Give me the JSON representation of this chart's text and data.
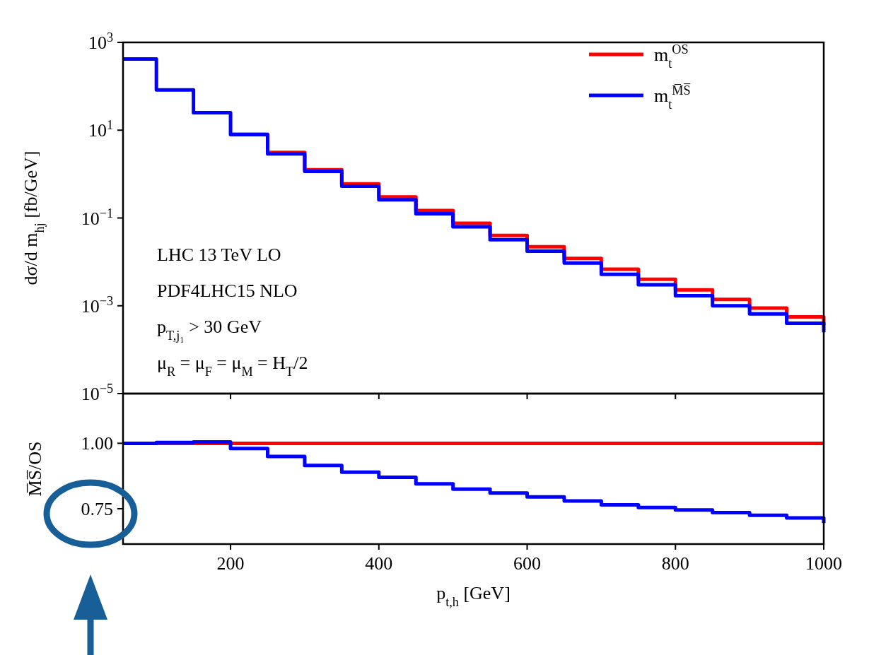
{
  "chart_data": [
    {
      "type": "step",
      "log": "y",
      "ylabel": "dσ/d m$_{hj}$ [fb/GeV]",
      "xlim": [
        55,
        1000
      ],
      "xticks": [
        200,
        400,
        600,
        800,
        1000
      ],
      "ylim": [
        1e-05,
        1000
      ],
      "yticks": [
        {
          "value": 1e-05,
          "label": "10$^{−5}$"
        },
        {
          "value": 0.001,
          "label": "10$^{−3}$"
        },
        {
          "value": 0.1,
          "label": "10$^{−1}$"
        },
        {
          "value": 10,
          "label": "10$^{1}$"
        },
        {
          "value": 1000,
          "label": "10$^{3}$"
        }
      ],
      "tick_labels": "y",
      "legend": "top right",
      "line_style": "solid",
      "annotations": [
        "LHC 13 TeV LO",
        "PDF4LHC15 NLO",
        "p$_{T,j₁}$ > 30 GeV",
        "μ$_{R}$ = μ$_{F}$ = μ$_{M}$ = H$_{T}$/2"
      ],
      "x": [
        55,
        100,
        150,
        200,
        250,
        300,
        350,
        400,
        450,
        500,
        550,
        600,
        650,
        700,
        750,
        800,
        850,
        900,
        950,
        1000
      ],
      "series": [
        {
          "name": "m$_{t}$$^{OS}$",
          "color": "#ff0000",
          "values": [
            null,
            null,
            null,
            8.1,
            3.1,
            1.26,
            0.6,
            0.3,
            0.148,
            0.076,
            0.04,
            0.022,
            0.012,
            0.0068,
            0.004,
            0.0023,
            0.0014,
            0.00089,
            0.00056,
            0.00036
          ]
        },
        {
          "name": "m$_{t}$$^{M̅S̅}$",
          "color": "#0000ff",
          "values": [
            420,
            83,
            25,
            7.9,
            2.9,
            1.15,
            0.53,
            0.26,
            0.125,
            0.063,
            0.032,
            0.0175,
            0.0094,
            0.0052,
            0.003,
            0.0017,
            0.001,
            0.00065,
            0.0004,
            0.00025
          ]
        }
      ]
    },
    {
      "type": "step",
      "xlabel": "p$_{t,h}$ [GeV]",
      "ylabel": "M̅S̅/OS",
      "xlim": [
        55,
        1000
      ],
      "xticks": [
        200,
        400,
        600,
        800,
        1000
      ],
      "ylim": [
        0.615,
        1.19
      ],
      "yticks": [
        {
          "value": 0.75,
          "label": "0.75"
        },
        {
          "value": 1,
          "label": "1.00"
        }
      ],
      "line_style": "solid",
      "x": [
        55,
        100,
        150,
        200,
        250,
        300,
        350,
        400,
        450,
        500,
        550,
        600,
        650,
        700,
        750,
        800,
        850,
        900,
        950,
        1000
      ],
      "series": [
        {
          "color": "#ff0000",
          "values": [
            null,
            1,
            1,
            1,
            1,
            1,
            1,
            1,
            1,
            1,
            1,
            1,
            1,
            1,
            1,
            1,
            1,
            1,
            1,
            1
          ]
        },
        {
          "color": "#0000ff",
          "values": [
            1,
            1.003,
            1.005,
            0.98,
            0.95,
            0.915,
            0.89,
            0.87,
            0.845,
            0.825,
            0.81,
            0.795,
            0.78,
            0.765,
            0.755,
            0.745,
            0.735,
            0.725,
            0.715,
            0.695
          ]
        }
      ]
    }
  ]
}
